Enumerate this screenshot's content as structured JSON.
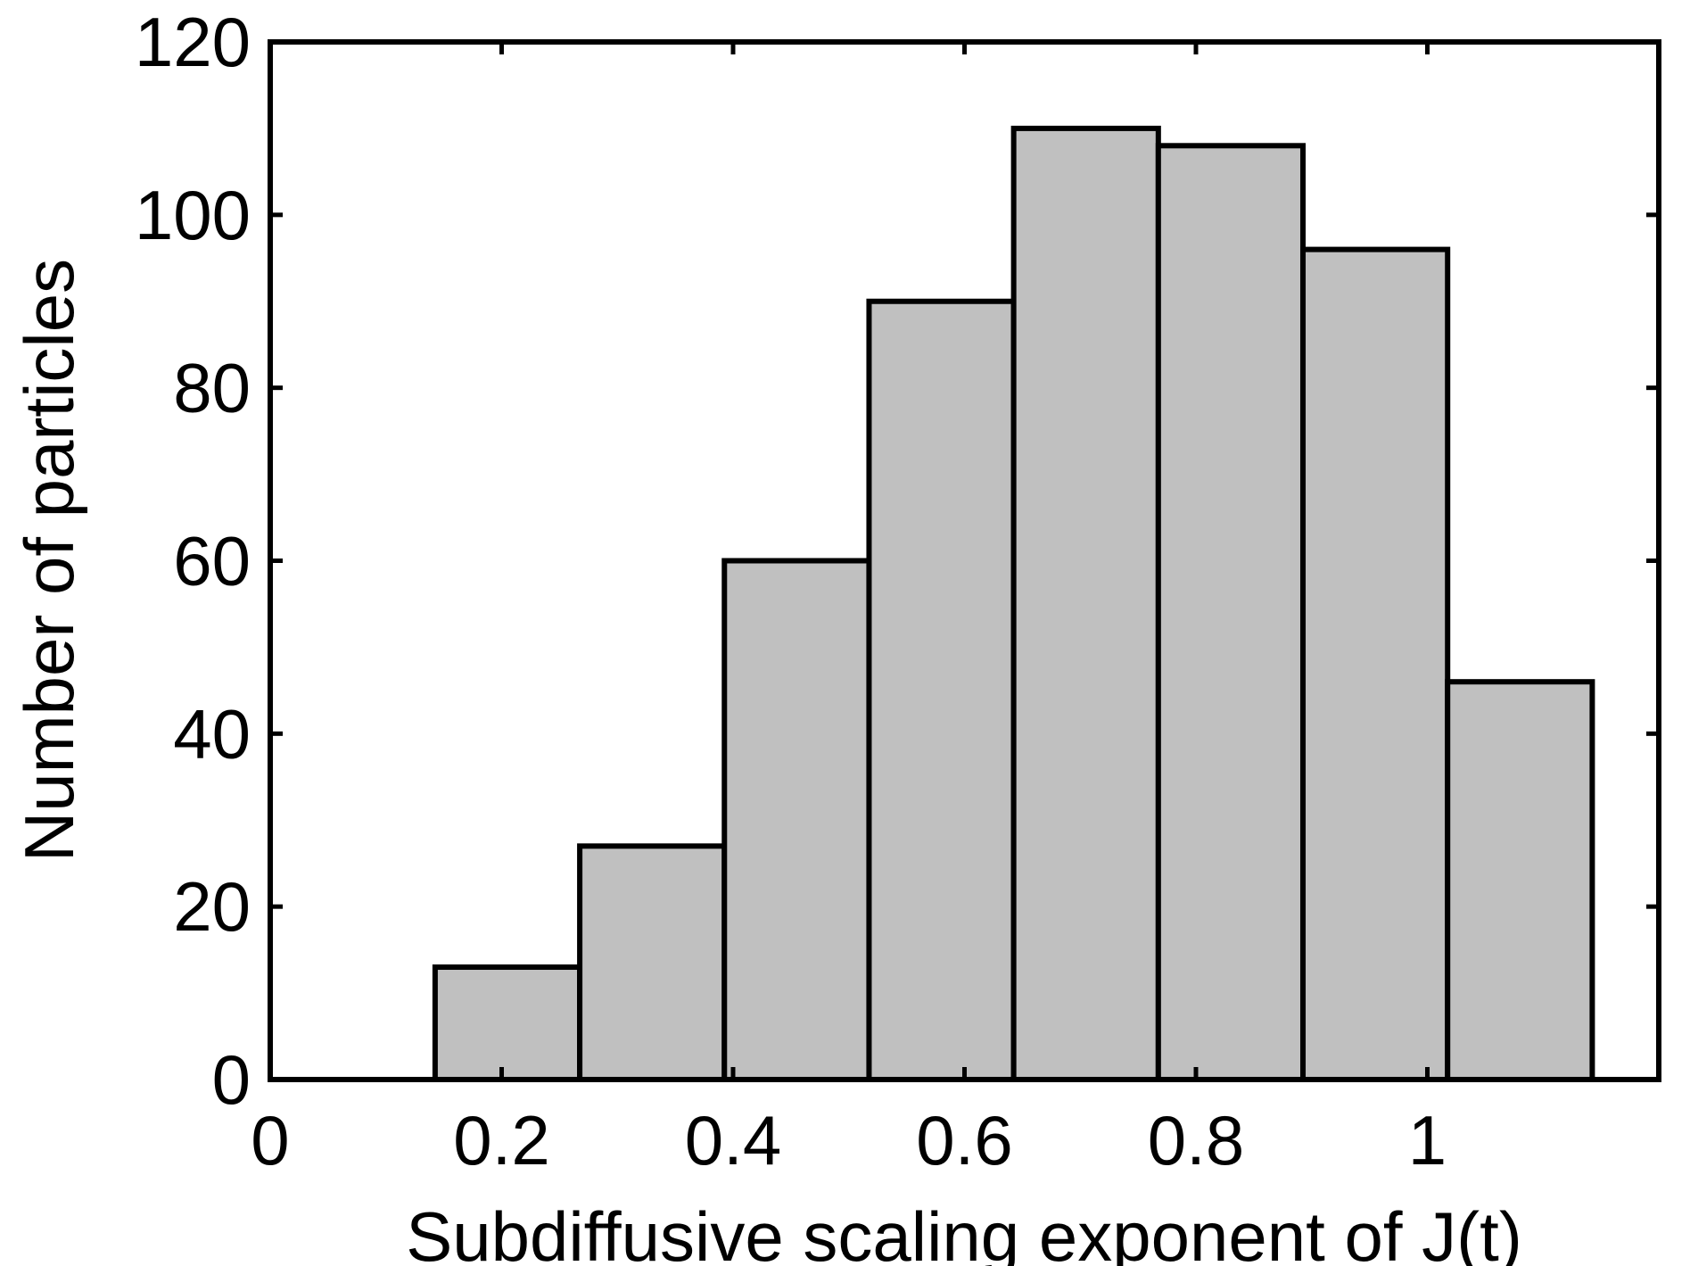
{
  "chart_data": {
    "type": "bar",
    "title": "",
    "xlabel": "Subdiffusive scaling exponent of J(t)",
    "ylabel": "Number of particles",
    "xlim": [
      0,
      1.2
    ],
    "ylim": [
      0,
      120
    ],
    "xticks": [
      0,
      0.2,
      0.4,
      0.6,
      0.8,
      1
    ],
    "xtick_labels": [
      "0",
      "0.2",
      "0.4",
      "0.6",
      "0.8",
      "1"
    ],
    "yticks": [
      0,
      20,
      40,
      60,
      80,
      100,
      120
    ],
    "ytick_labels": [
      "0",
      "20",
      "40",
      "60",
      "80",
      "100",
      "120"
    ],
    "bin_edges": [
      0.1425,
      0.2675,
      0.3925,
      0.5175,
      0.6425,
      0.7675,
      0.8925,
      1.0175,
      1.1425
    ],
    "values": [
      13,
      27,
      60,
      90,
      110,
      108,
      96,
      46
    ],
    "grid": false,
    "colors": {
      "bar_fill": "#c0c0c0",
      "bar_edge": "#000000",
      "frame": "#000000"
    }
  }
}
